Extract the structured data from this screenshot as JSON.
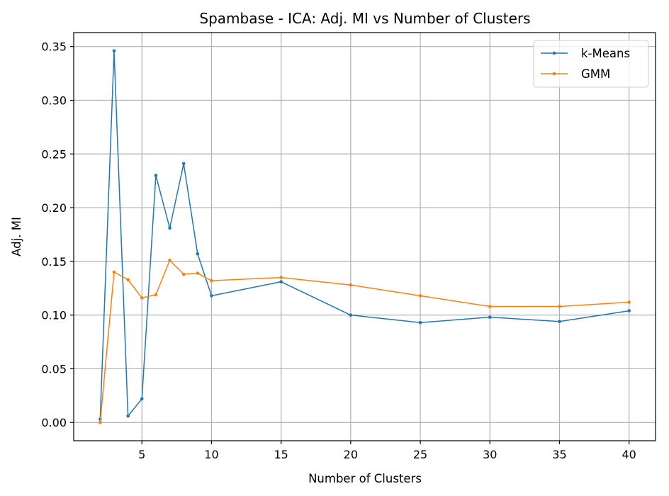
{
  "chart_data": {
    "type": "line",
    "title": "Spambase - ICA: Adj. MI vs Number of Clusters",
    "xlabel": "Number of Clusters",
    "ylabel": "Adj. MI",
    "xlim": [
      0.1,
      41.9
    ],
    "ylim": [
      -0.017,
      0.363
    ],
    "x_ticks": [
      5,
      10,
      15,
      20,
      25,
      30,
      35,
      40
    ],
    "y_ticks": [
      0.0,
      0.05,
      0.1,
      0.15,
      0.2,
      0.25,
      0.3,
      0.35
    ],
    "y_tick_labels": [
      "0.00",
      "0.05",
      "0.10",
      "0.15",
      "0.20",
      "0.25",
      "0.30",
      "0.35"
    ],
    "grid": true,
    "legend_position": "top-right",
    "x": [
      2,
      3,
      4,
      5,
      6,
      7,
      8,
      9,
      10,
      15,
      20,
      25,
      30,
      35,
      40
    ],
    "series": [
      {
        "name": "k-Means",
        "color": "#1f77b4",
        "values": [
          0.003,
          0.346,
          0.006,
          0.022,
          0.23,
          0.181,
          0.241,
          0.157,
          0.118,
          0.131,
          0.1,
          0.093,
          0.098,
          0.094,
          0.104
        ]
      },
      {
        "name": "GMM",
        "color": "#ff7f0e",
        "values": [
          0.0,
          0.14,
          0.133,
          0.116,
          0.119,
          0.151,
          0.138,
          0.139,
          0.132,
          0.135,
          0.128,
          0.118,
          0.108,
          0.108,
          0.112
        ]
      }
    ]
  }
}
